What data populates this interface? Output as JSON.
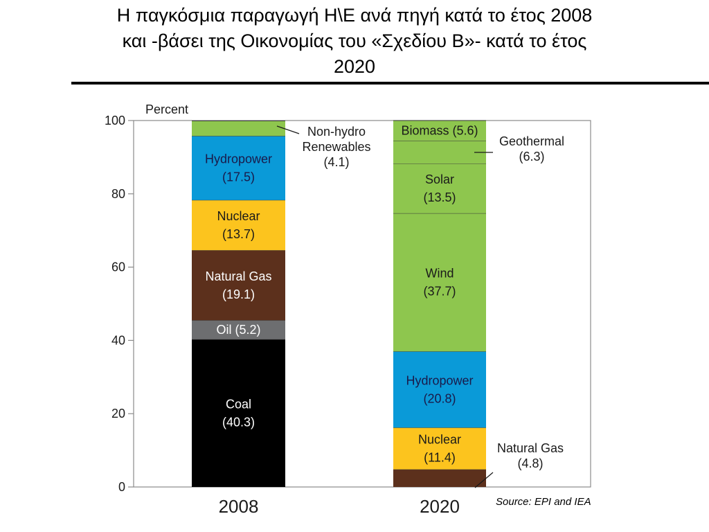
{
  "title": {
    "line1": "Η παγκόσμια παραγωγή Η\\Ε ανά πηγή κατά το έτος 2008",
    "line2": "και -βάσει της Οικονομίας του «Σχεδίου Β»- κατά το έτος",
    "line3": "2020"
  },
  "source": "Source: EPI and IEA",
  "chart_data": {
    "type": "bar",
    "stacked": true,
    "ylabel": "Percent",
    "ylim": [
      0,
      100
    ],
    "yticks": [
      0,
      20,
      40,
      60,
      80,
      100
    ],
    "categories": [
      "2008",
      "2020"
    ],
    "stacks": [
      {
        "category": "2008",
        "segments": [
          {
            "source": "Coal",
            "value": 40.3,
            "color": "#000000",
            "label_lines": [
              "Coal",
              "(40.3)"
            ],
            "label_color": "#ffffff"
          },
          {
            "source": "Oil",
            "value": 5.2,
            "color": "#6d6e70",
            "label_lines": [
              "Oil (5.2)"
            ],
            "label_color": "#ffffff"
          },
          {
            "source": "Natural Gas",
            "value": 19.1,
            "color": "#5c301c",
            "label_lines": [
              "Natural Gas",
              "(19.1)"
            ],
            "label_color": "#ffffff"
          },
          {
            "source": "Nuclear",
            "value": 13.7,
            "color": "#fcc41e",
            "label_lines": [
              "Nuclear",
              "(13.7)"
            ],
            "label_color": "#1a1a1a"
          },
          {
            "source": "Hydropower",
            "value": 17.5,
            "color": "#0a9ad8",
            "label_lines": [
              "Hydropower",
              "(17.5)"
            ],
            "label_color": "#1a1a4a"
          },
          {
            "source": "Non-hydro Renewables",
            "value": 4.1,
            "color": "#8ec64e",
            "label_lines": [],
            "label_color": "#1a1a1a"
          }
        ]
      },
      {
        "category": "2020",
        "segments": [
          {
            "source": "Natural Gas",
            "value": 4.8,
            "color": "#5c301c",
            "label_lines": [],
            "label_color": "#ffffff"
          },
          {
            "source": "Nuclear",
            "value": 11.4,
            "color": "#fcc41e",
            "label_lines": [
              "Nuclear",
              "(11.4)"
            ],
            "label_color": "#1a1a1a"
          },
          {
            "source": "Hydropower",
            "value": 20.8,
            "color": "#0a9ad8",
            "label_lines": [
              "Hydropower",
              "(20.8)"
            ],
            "label_color": "#1a1a4a"
          },
          {
            "source": "Wind",
            "value": 37.7,
            "color": "#8ec64e",
            "label_lines": [
              "Wind",
              "(37.7)"
            ],
            "label_color": "#1a1a1a"
          },
          {
            "source": "Solar",
            "value": 13.5,
            "color": "#8ec64e",
            "label_lines": [
              "Solar",
              "(13.5)"
            ],
            "label_color": "#1a1a1a"
          },
          {
            "source": "Geothermal",
            "value": 6.3,
            "color": "#8ec64e",
            "label_lines": [],
            "label_color": "#1a1a1a"
          },
          {
            "source": "Biomass",
            "value": 5.6,
            "color": "#8ec64e",
            "label_lines": [
              "Biomass (5.6)"
            ],
            "label_color": "#1a1a1a"
          }
        ]
      }
    ],
    "callouts": [
      {
        "category": "2008",
        "source": "Non-hydro Renewables",
        "lines": [
          "Non-hydro",
          "Renewables",
          "(4.1)"
        ]
      },
      {
        "category": "2020",
        "source": "Geothermal",
        "lines": [
          "Geothermal",
          "(6.3)"
        ]
      },
      {
        "category": "2020",
        "source": "Natural Gas",
        "lines": [
          "Natural Gas",
          "(4.8)"
        ]
      }
    ],
    "grid": false,
    "legend": "none"
  }
}
